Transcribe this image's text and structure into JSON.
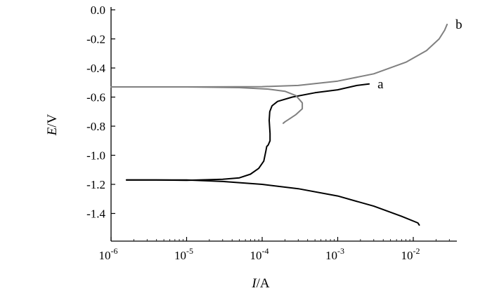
{
  "chart_data": {
    "type": "line",
    "xscale": "log",
    "xlim": [
      1e-06,
      0.03
    ],
    "ylim": [
      -1.55,
      0.0
    ],
    "grid": false,
    "legend": "none",
    "xlabel": {
      "var": "I",
      "unit": "/A"
    },
    "ylabel": {
      "var": "E",
      "unit": "/V"
    },
    "xticks": [
      {
        "value": 1e-06,
        "base": "10",
        "exp": "-6"
      },
      {
        "value": 1e-05,
        "base": "10",
        "exp": "-5"
      },
      {
        "value": 0.0001,
        "base": "10",
        "exp": "-4"
      },
      {
        "value": 0.001,
        "base": "10",
        "exp": "-3"
      },
      {
        "value": 0.01,
        "base": "10",
        "exp": "-2"
      }
    ],
    "yticks": [
      {
        "value": 0.0,
        "label": "0.0"
      },
      {
        "value": -0.2,
        "label": "-0.2"
      },
      {
        "value": -0.4,
        "label": "-0.4"
      },
      {
        "value": -0.6,
        "label": "-0.6"
      },
      {
        "value": -0.8,
        "label": "-0.8"
      },
      {
        "value": -1.0,
        "label": "-1.0"
      },
      {
        "value": -1.2,
        "label": "-1.2"
      },
      {
        "value": -1.4,
        "label": "-1.4"
      }
    ],
    "series": [
      {
        "label": "a",
        "color": "#000000",
        "points": [
          [
            1.6e-06,
            -1.17
          ],
          [
            4e-06,
            -1.17
          ],
          [
            1e-05,
            -1.172
          ],
          [
            3e-05,
            -1.165
          ],
          [
            5e-05,
            -1.155
          ],
          [
            7e-05,
            -1.13
          ],
          [
            9e-05,
            -1.09
          ],
          [
            0.000105,
            -1.04
          ],
          [
            0.000112,
            -0.97
          ],
          [
            0.000115,
            -0.94
          ],
          [
            0.00012,
            -0.93
          ],
          [
            0.000127,
            -0.9
          ],
          [
            0.000127,
            -0.85
          ],
          [
            0.000124,
            -0.76
          ],
          [
            0.000126,
            -0.7
          ],
          [
            0.000135,
            -0.66
          ],
          [
            0.00016,
            -0.63
          ],
          [
            0.00025,
            -0.6
          ],
          [
            0.0005,
            -0.57
          ],
          [
            0.001,
            -0.55
          ],
          [
            0.0018,
            -0.52
          ],
          [
            0.0026,
            -0.51
          ]
        ]
      },
      {
        "label": "",
        "color": "#000000",
        "points": [
          [
            1.6e-06,
            -1.17
          ],
          [
            4e-06,
            -1.17
          ],
          [
            1e-05,
            -1.17
          ],
          [
            3e-05,
            -1.18
          ],
          [
            0.0001,
            -1.2
          ],
          [
            0.0003,
            -1.23
          ],
          [
            0.001,
            -1.28
          ],
          [
            0.003,
            -1.35
          ],
          [
            0.007,
            -1.42
          ],
          [
            0.0115,
            -1.465
          ],
          [
            0.012,
            -1.48
          ]
        ]
      },
      {
        "label": "b",
        "color": "#808080",
        "points": [
          [
            1e-06,
            -0.53
          ],
          [
            1e-05,
            -0.53
          ],
          [
            0.0001,
            -0.528
          ],
          [
            0.0003,
            -0.52
          ],
          [
            0.001,
            -0.49
          ],
          [
            0.003,
            -0.44
          ],
          [
            0.008,
            -0.36
          ],
          [
            0.015,
            -0.28
          ],
          [
            0.022,
            -0.2
          ],
          [
            0.026,
            -0.14
          ],
          [
            0.028,
            -0.1
          ]
        ]
      },
      {
        "label": "",
        "color": "#808080",
        "points": [
          [
            1e-06,
            -0.53
          ],
          [
            1e-05,
            -0.53
          ],
          [
            5e-05,
            -0.535
          ],
          [
            0.00012,
            -0.545
          ],
          [
            0.0002,
            -0.56
          ],
          [
            0.00028,
            -0.59
          ],
          [
            0.00034,
            -0.64
          ],
          [
            0.00034,
            -0.68
          ],
          [
            0.00028,
            -0.72
          ],
          [
            0.00023,
            -0.75
          ],
          [
            0.0002,
            -0.77
          ],
          [
            0.00019,
            -0.78
          ]
        ]
      }
    ]
  }
}
